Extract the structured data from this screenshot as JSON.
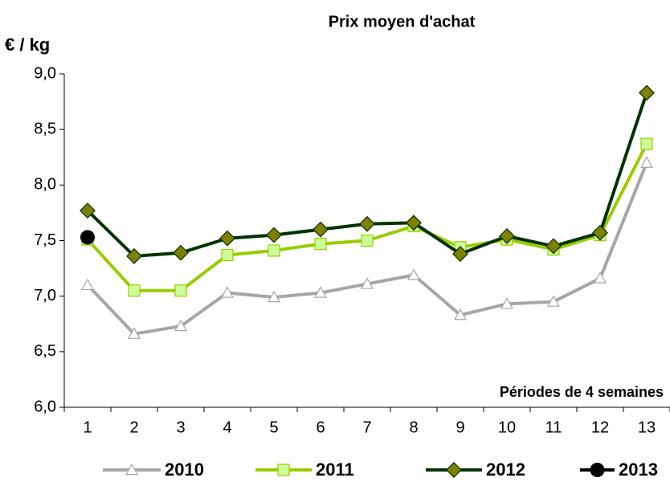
{
  "chart_data": {
    "type": "line",
    "title": "Prix moyen d'achat",
    "y_label": "€ / kg",
    "annotation": "Périodes de 4 semaines",
    "categories": [
      "1",
      "2",
      "3",
      "4",
      "5",
      "6",
      "7",
      "8",
      "9",
      "10",
      "11",
      "12",
      "13"
    ],
    "ylim": [
      6,
      9
    ],
    "yticks": [
      {
        "value": 6,
        "label": "6,0"
      },
      {
        "value": 6.5,
        "label": "6,5"
      },
      {
        "value": 7,
        "label": "7,0"
      },
      {
        "value": 7.5,
        "label": "7,5"
      },
      {
        "value": 8,
        "label": "8,0"
      },
      {
        "value": 8.5,
        "label": "8,5"
      },
      {
        "value": 9,
        "label": "9,0"
      }
    ],
    "grid": false,
    "legend": "bottom",
    "series": [
      {
        "name": "2010",
        "color": "#a6a6a6",
        "marker": "triangle",
        "marker_fill": "#ffffff",
        "values": [
          7.1,
          6.66,
          6.73,
          7.03,
          6.99,
          7.03,
          7.11,
          7.19,
          6.83,
          6.93,
          6.95,
          7.16,
          8.2
        ]
      },
      {
        "name": "2011",
        "color": "#99cc00",
        "marker": "square",
        "marker_fill": "#ccff99",
        "values": [
          7.51,
          7.05,
          7.05,
          7.37,
          7.41,
          7.47,
          7.5,
          7.63,
          7.44,
          7.51,
          7.42,
          7.55,
          8.37
        ]
      },
      {
        "name": "2012",
        "color": "#003300",
        "marker": "diamond",
        "marker_fill": "#808000",
        "values": [
          7.77,
          7.36,
          7.39,
          7.52,
          7.55,
          7.6,
          7.65,
          7.66,
          7.38,
          7.54,
          7.45,
          7.57,
          8.83
        ]
      },
      {
        "name": "2013",
        "color": "#000000",
        "marker": "circle",
        "marker_fill": "#000000",
        "values": [
          7.53,
          null,
          null,
          null,
          null,
          null,
          null,
          null,
          null,
          null,
          null,
          null,
          null
        ]
      }
    ]
  }
}
